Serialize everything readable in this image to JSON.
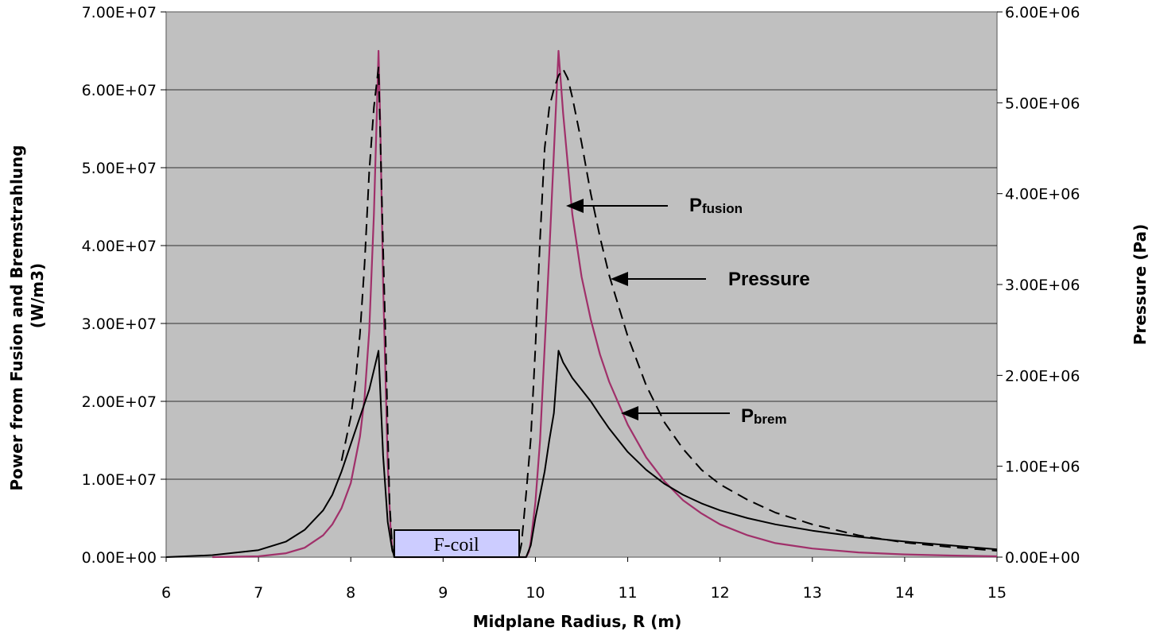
{
  "chart_data": {
    "type": "line",
    "title": "",
    "xlabel": "Midplane Radius, R (m)",
    "ylabel_left_line1": "Power from Fusion and Bremstrahlung",
    "ylabel_left_line2": "(W/m3)",
    "ylabel_right": "Pressure (Pa)",
    "xlim": [
      6,
      15
    ],
    "ylim_left": [
      0,
      70000000
    ],
    "ylim_right": [
      0,
      6000000
    ],
    "x_ticks": [
      "6",
      "7",
      "8",
      "9",
      "10",
      "11",
      "12",
      "13",
      "14",
      "15"
    ],
    "y_left_ticks": [
      "0.00E+00",
      "1.00E+07",
      "2.00E+07",
      "3.00E+07",
      "4.00E+07",
      "5.00E+07",
      "6.00E+07",
      "7.00E+07"
    ],
    "y_right_ticks": [
      "0.00E+00",
      "1.00E+06",
      "2.00E+06",
      "3.00E+06",
      "4.00E+06",
      "5.00E+06",
      "6.00E+06"
    ],
    "grid": true,
    "plot_background": "#c0c0c0",
    "series": [
      {
        "key": "pfusion",
        "axis": "left",
        "color": "#a0306a",
        "dash": "solid",
        "x": [
          6.5,
          7.0,
          7.3,
          7.5,
          7.7,
          7.8,
          7.9,
          8.0,
          8.1,
          8.15,
          8.2,
          8.25,
          8.28,
          8.3,
          8.32,
          8.35,
          8.4,
          8.43,
          8.45,
          8.48,
          9.9,
          9.93,
          9.95,
          10.0,
          10.05,
          10.1,
          10.15,
          10.2,
          10.25,
          10.3,
          10.4,
          10.5,
          10.6,
          10.7,
          10.8,
          11.0,
          11.2,
          11.4,
          11.6,
          11.8,
          12.0,
          12.3,
          12.6,
          13.0,
          13.5,
          14.0,
          14.5,
          15.0
        ],
        "y": [
          0,
          100000,
          500000,
          1200000,
          2800000,
          4200000,
          6300000,
          9500000,
          15500000,
          20500000,
          29000000,
          44000000,
          56000000,
          65000000,
          55000000,
          35000000,
          12000000,
          4000000,
          1000000,
          0,
          0,
          700000,
          2000000,
          7000000,
          15000000,
          27000000,
          39000000,
          52000000,
          65000000,
          57000000,
          44000000,
          36000000,
          30500000,
          26000000,
          22500000,
          17000000,
          12800000,
          9700000,
          7300000,
          5600000,
          4200000,
          2800000,
          1800000,
          1100000,
          600000,
          350000,
          200000,
          100000
        ]
      },
      {
        "key": "pbrem",
        "axis": "left",
        "color": "#000000",
        "dash": "solid",
        "x": [
          6.0,
          6.5,
          7.0,
          7.3,
          7.5,
          7.7,
          7.8,
          7.9,
          8.0,
          8.1,
          8.2,
          8.25,
          8.3,
          8.35,
          8.4,
          8.45,
          8.48,
          9.9,
          9.95,
          10.0,
          10.05,
          10.1,
          10.15,
          10.2,
          10.25,
          10.3,
          10.35,
          10.4,
          10.5,
          10.6,
          10.7,
          10.8,
          11.0,
          11.2,
          11.4,
          11.6,
          11.8,
          12.0,
          12.3,
          12.6,
          13.0,
          13.5,
          14.0,
          14.5,
          15.0
        ],
        "y": [
          0,
          250000,
          900000,
          2000000,
          3500000,
          6000000,
          8000000,
          11000000,
          14500000,
          18000000,
          21500000,
          24000000,
          26500000,
          13000000,
          4500000,
          800000,
          0,
          0,
          1500000,
          5000000,
          8000000,
          11000000,
          15000000,
          18500000,
          26500000,
          25000000,
          24000000,
          23000000,
          21500000,
          20000000,
          18200000,
          16500000,
          13500000,
          11200000,
          9400000,
          8000000,
          6900000,
          6000000,
          5000000,
          4200000,
          3400000,
          2600000,
          2000000,
          1500000,
          1000000
        ]
      },
      {
        "key": "pressure",
        "axis": "right",
        "color": "#000000",
        "dash": "dashed",
        "x": [
          7.9,
          8.0,
          8.05,
          8.1,
          8.15,
          8.2,
          8.25,
          8.3,
          8.35,
          8.38,
          8.4,
          8.42,
          8.45,
          8.47,
          8.48,
          9.82,
          9.85,
          9.9,
          9.95,
          10.0,
          10.05,
          10.1,
          10.15,
          10.2,
          10.25,
          10.3,
          10.35,
          10.4,
          10.5,
          10.6,
          10.7,
          10.8,
          11.0,
          11.2,
          11.4,
          11.6,
          11.8,
          12.0,
          12.3,
          12.6,
          13.0,
          13.5,
          14.0,
          14.5,
          15.0
        ],
        "y": [
          1060000,
          1540000,
          1920000,
          2460000,
          3230000,
          4240000,
          4950000,
          5390000,
          3400000,
          2300000,
          1400000,
          600000,
          100000,
          0,
          0,
          0,
          150000,
          700000,
          1300000,
          2300000,
          3500000,
          4500000,
          4950000,
          5150000,
          5300000,
          5370000,
          5270000,
          5060000,
          4560000,
          4000000,
          3520000,
          3100000,
          2430000,
          1890000,
          1480000,
          1190000,
          960000,
          800000,
          630000,
          490000,
          360000,
          240000,
          160000,
          110000,
          70000
        ]
      }
    ],
    "annotations": {
      "pfusion_main": "P",
      "pfusion_sub": "fusion",
      "pressure": "Pressure",
      "pbrem_main": "P",
      "pbrem_sub": "brem",
      "coil": "F-coil"
    }
  }
}
